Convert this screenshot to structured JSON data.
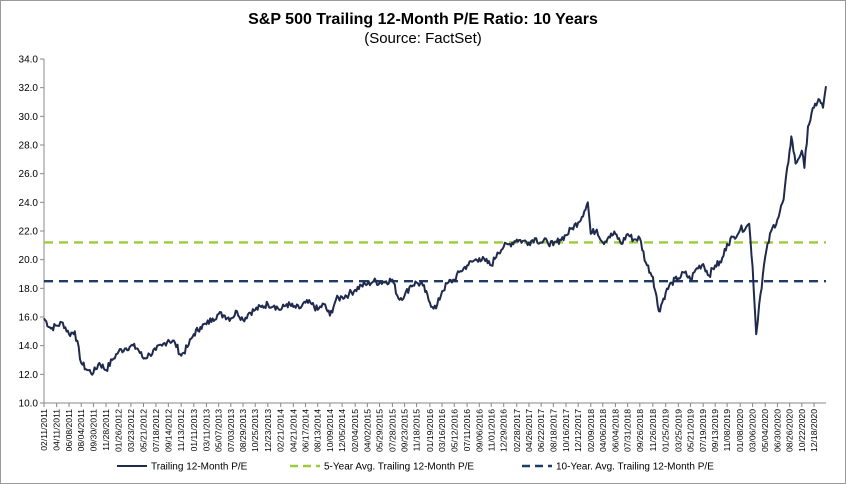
{
  "chart_data": {
    "type": "line",
    "title": "S&P 500 Trailing 12-Month P/E Ratio: 10 Years",
    "subtitle": "(Source: FactSet)",
    "xlabel": "",
    "ylabel": "",
    "ylim": [
      10.0,
      34.0
    ],
    "y_ticks": [
      "10.0",
      "12.0",
      "14.0",
      "16.0",
      "18.0",
      "20.0",
      "22.0",
      "24.0",
      "26.0",
      "28.0",
      "30.0",
      "32.0",
      "34.0"
    ],
    "x_ticks": [
      "02/11/2011",
      "04/11/2011",
      "06/08/2011",
      "08/04/2011",
      "09/30/2011",
      "11/28/2011",
      "01/26/2012",
      "03/23/2012",
      "05/21/2012",
      "07/18/2012",
      "09/14/2012",
      "11/13/2012",
      "01/11/2013",
      "03/11/2013",
      "05/07/2013",
      "07/03/2013",
      "08/29/2013",
      "10/25/2013",
      "12/23/2013",
      "02/21/2014",
      "04/21/2014",
      "06/17/2014",
      "08/13/2014",
      "10/09/2014",
      "12/05/2014",
      "02/04/2015",
      "04/02/2015",
      "05/29/2015",
      "07/28/2015",
      "09/23/2015",
      "11/18/2015",
      "01/19/2016",
      "03/16/2016",
      "05/12/2016",
      "07/11/2016",
      "09/06/2016",
      "11/01/2016",
      "12/29/2016",
      "02/28/2017",
      "04/26/2017",
      "06/22/2017",
      "08/18/2017",
      "10/16/2017",
      "12/12/2017",
      "02/09/2018",
      "04/06/2018",
      "06/04/2018",
      "07/31/2018",
      "09/26/2018",
      "11/26/2018",
      "01/25/2019",
      "03/25/2019",
      "05/21/2019",
      "07/19/2019",
      "09/13/2019",
      "11/08/2019",
      "01/08/2020",
      "03/06/2020",
      "05/04/2020",
      "06/30/2020",
      "08/26/2020",
      "10/22/2020",
      "12/18/2020"
    ],
    "grid": false,
    "legend_position": "bottom",
    "series": [
      {
        "name": "Trailing 12-Month P/E",
        "color": "#1f2a4d",
        "points": [
          [
            "02/11/2011",
            15.9
          ],
          [
            "03/15/2011",
            15.2
          ],
          [
            "04/11/2011",
            15.4
          ],
          [
            "05/10/2011",
            15.6
          ],
          [
            "06/08/2011",
            14.8
          ],
          [
            "07/05/2011",
            15.0
          ],
          [
            "08/04/2011",
            12.8
          ],
          [
            "09/01/2011",
            12.3
          ],
          [
            "09/30/2011",
            12.1
          ],
          [
            "10/28/2011",
            12.8
          ],
          [
            "11/28/2011",
            12.3
          ],
          [
            "12/27/2011",
            13.0
          ],
          [
            "01/26/2012",
            13.6
          ],
          [
            "02/24/2012",
            13.8
          ],
          [
            "03/23/2012",
            14.0
          ],
          [
            "04/23/2012",
            13.8
          ],
          [
            "05/21/2012",
            13.1
          ],
          [
            "06/19/2012",
            13.4
          ],
          [
            "07/18/2012",
            13.7
          ],
          [
            "08/16/2012",
            14.0
          ],
          [
            "09/14/2012",
            14.4
          ],
          [
            "10/15/2012",
            14.2
          ],
          [
            "11/13/2012",
            13.3
          ],
          [
            "12/12/2012",
            13.9
          ],
          [
            "01/11/2013",
            14.8
          ],
          [
            "02/11/2013",
            15.3
          ],
          [
            "03/11/2013",
            15.5
          ],
          [
            "04/09/2013",
            15.9
          ],
          [
            "05/07/2013",
            16.2
          ],
          [
            "06/05/2013",
            16.1
          ],
          [
            "07/03/2013",
            15.9
          ],
          [
            "08/01/2013",
            16.4
          ],
          [
            "08/29/2013",
            15.8
          ],
          [
            "09/27/2013",
            16.3
          ],
          [
            "10/25/2013",
            16.5
          ],
          [
            "11/22/2013",
            16.7
          ],
          [
            "12/23/2013",
            16.9
          ],
          [
            "01/22/2014",
            16.8
          ],
          [
            "02/21/2014",
            16.5
          ],
          [
            "03/21/2014",
            16.9
          ],
          [
            "04/21/2014",
            16.7
          ],
          [
            "05/19/2014",
            16.6
          ],
          [
            "06/17/2014",
            17.0
          ],
          [
            "07/16/2014",
            16.9
          ],
          [
            "08/13/2014",
            16.5
          ],
          [
            "09/11/2014",
            16.9
          ],
          [
            "10/09/2014",
            16.1
          ],
          [
            "11/06/2014",
            17.2
          ],
          [
            "12/05/2014",
            17.4
          ],
          [
            "01/06/2015",
            17.6
          ],
          [
            "02/04/2015",
            17.9
          ],
          [
            "03/05/2015",
            18.2
          ],
          [
            "04/02/2015",
            18.3
          ],
          [
            "05/01/2015",
            18.5
          ],
          [
            "05/29/2015",
            18.4
          ],
          [
            "06/29/2015",
            18.5
          ],
          [
            "07/28/2015",
            18.6
          ],
          [
            "08/25/2015",
            17.3
          ],
          [
            "09/23/2015",
            17.5
          ],
          [
            "10/21/2015",
            18.2
          ],
          [
            "11/18/2015",
            18.4
          ],
          [
            "12/17/2015",
            18.2
          ],
          [
            "01/19/2016",
            17.0
          ],
          [
            "02/17/2016",
            16.6
          ],
          [
            "03/16/2016",
            17.8
          ],
          [
            "04/14/2016",
            18.4
          ],
          [
            "05/12/2016",
            18.6
          ],
          [
            "06/10/2016",
            19.2
          ],
          [
            "07/11/2016",
            19.6
          ],
          [
            "08/09/2016",
            19.9
          ],
          [
            "09/06/2016",
            20.1
          ],
          [
            "10/04/2016",
            19.9
          ],
          [
            "11/01/2016",
            19.6
          ],
          [
            "11/30/2016",
            20.5
          ],
          [
            "12/29/2016",
            20.9
          ],
          [
            "01/27/2017",
            21.1
          ],
          [
            "02/28/2017",
            21.4
          ],
          [
            "03/28/2017",
            21.3
          ],
          [
            "04/26/2017",
            21.2
          ],
          [
            "05/24/2017",
            21.5
          ],
          [
            "06/22/2017",
            21.2
          ],
          [
            "07/20/2017",
            21.3
          ],
          [
            "08/18/2017",
            21.0
          ],
          [
            "09/18/2017",
            21.4
          ],
          [
            "10/16/2017",
            21.7
          ],
          [
            "11/13/2017",
            22.2
          ],
          [
            "12/12/2017",
            22.6
          ],
          [
            "01/10/2018",
            23.4
          ],
          [
            "01/26/2018",
            24.0
          ],
          [
            "02/09/2018",
            21.8
          ],
          [
            "03/09/2018",
            22.1
          ],
          [
            "04/06/2018",
            21.2
          ],
          [
            "05/04/2018",
            21.6
          ],
          [
            "06/04/2018",
            21.8
          ],
          [
            "07/02/2018",
            21.1
          ],
          [
            "07/31/2018",
            21.8
          ],
          [
            "08/28/2018",
            21.4
          ],
          [
            "09/26/2018",
            21.5
          ],
          [
            "10/24/2018",
            19.8
          ],
          [
            "11/26/2018",
            18.8
          ],
          [
            "12/24/2018",
            16.4
          ],
          [
            "01/25/2019",
            17.7
          ],
          [
            "02/22/2019",
            18.4
          ],
          [
            "03/25/2019",
            18.7
          ],
          [
            "04/23/2019",
            19.1
          ],
          [
            "05/21/2019",
            18.6
          ],
          [
            "06/19/2019",
            19.4
          ],
          [
            "07/19/2019",
            19.7
          ],
          [
            "08/15/2019",
            18.9
          ],
          [
            "09/13/2019",
            19.6
          ],
          [
            "10/11/2019",
            19.8
          ],
          [
            "11/08/2019",
            21.1
          ],
          [
            "12/09/2019",
            21.6
          ],
          [
            "01/08/2020",
            22.1
          ],
          [
            "02/06/2020",
            22.3
          ],
          [
            "02/19/2020",
            22.5
          ],
          [
            "03/06/2020",
            19.5
          ],
          [
            "03/23/2020",
            14.8
          ],
          [
            "04/06/2020",
            16.9
          ],
          [
            "05/04/2020",
            20.2
          ],
          [
            "06/01/2020",
            22.0
          ],
          [
            "06/30/2020",
            22.8
          ],
          [
            "07/29/2020",
            24.2
          ],
          [
            "08/26/2020",
            27.6
          ],
          [
            "09/03/2020",
            28.6
          ],
          [
            "09/23/2020",
            26.7
          ],
          [
            "10/22/2020",
            27.6
          ],
          [
            "11/03/2020",
            26.4
          ],
          [
            "11/20/2020",
            29.3
          ],
          [
            "12/18/2020",
            30.6
          ],
          [
            "01/08/2021",
            31.2
          ],
          [
            "01/29/2021",
            30.6
          ],
          [
            "02/12/2021",
            32.1
          ]
        ]
      },
      {
        "name": "5-Year Avg. Trailing 12-Month P/E",
        "color": "#9dcc3a",
        "value": 21.2
      },
      {
        "name": "10-Year. Avg. Trailing 12-Month P/E",
        "color": "#1f3a66",
        "value": 18.5
      }
    ]
  }
}
